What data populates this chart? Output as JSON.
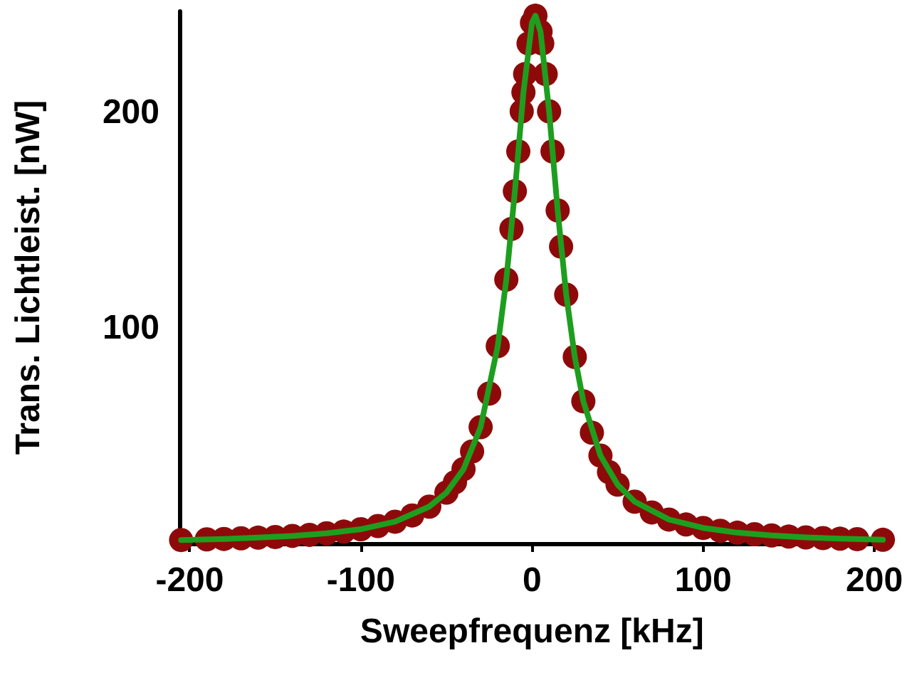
{
  "chart_data": {
    "type": "scatter",
    "xlabel": "Sweepfrequenz [kHz]",
    "ylabel": "Trans. Lichtleist. [nW]",
    "xlim": [
      -206,
      206
    ],
    "ylim": [
      0,
      247
    ],
    "xticks": [
      -200,
      -100,
      0,
      100,
      200
    ],
    "yticks": [
      100,
      200
    ],
    "grid": false,
    "series": [
      {
        "marker": "circle",
        "color": "#8e0a0a",
        "x": [
          -205,
          -190,
          -180,
          -170,
          -160,
          -150,
          -140,
          -130,
          -120,
          -110,
          -100,
          -90,
          -80,
          -70,
          -60,
          -50,
          -45,
          -40,
          -35,
          -30,
          -25,
          -20,
          -15,
          -12,
          -10,
          -8,
          -6,
          -5,
          -4,
          -2,
          0,
          2,
          5,
          6,
          8,
          10,
          12,
          15,
          17,
          20,
          25,
          30,
          35,
          40,
          45,
          50,
          60,
          70,
          80,
          90,
          100,
          110,
          120,
          130,
          140,
          150,
          160,
          170,
          180,
          190,
          205
        ],
        "values": [
          1.6,
          1.9,
          2.1,
          2.4,
          2.7,
          3.0,
          3.5,
          4.0,
          4.7,
          5.5,
          6.6,
          8.1,
          10.1,
          13.0,
          17.1,
          23.6,
          28.4,
          34.5,
          42.7,
          54.0,
          69.6,
          91.6,
          122.5,
          146.0,
          163.5,
          182.0,
          200.6,
          209.4,
          217.9,
          232.1,
          241.7,
          245,
          237.6,
          232.1,
          217.9,
          200.6,
          182.0,
          154.6,
          137.8,
          115.5,
          86.6,
          66.0,
          51.4,
          40.8,
          33.1,
          27.3,
          19.4,
          14.4,
          11.1,
          8.8,
          7.2,
          5.9,
          5.0,
          4.3,
          3.7,
          3.2,
          2.8,
          2.5,
          2.2,
          2.0,
          1.7
        ]
      },
      {
        "type": "line",
        "marker": "none",
        "line_style": "solid",
        "color": "#1e9e1e",
        "x": [
          -205,
          -180,
          -160,
          -140,
          -120,
          -100,
          -80,
          -60,
          -50,
          -40,
          -30,
          -20,
          -15,
          -10,
          -5,
          0,
          2,
          5,
          10,
          15,
          20,
          25,
          30,
          40,
          50,
          60,
          80,
          100,
          120,
          140,
          160,
          180,
          205
        ],
        "values": [
          1.6,
          2.1,
          2.7,
          3.5,
          4.7,
          6.6,
          10.1,
          17.1,
          23.6,
          34.5,
          54.0,
          91.6,
          122.5,
          163.5,
          209.4,
          241.7,
          245,
          237.6,
          200.6,
          154.6,
          115.5,
          86.6,
          66.0,
          40.8,
          27.3,
          19.4,
          11.1,
          7.2,
          5.0,
          3.7,
          2.8,
          2.2,
          1.7
        ]
      }
    ]
  }
}
